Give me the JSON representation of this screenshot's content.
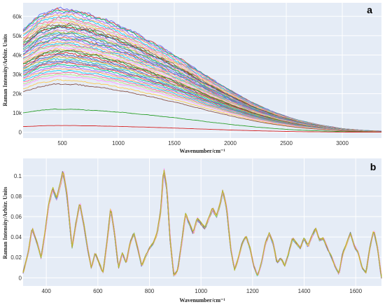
{
  "chart_data": [
    {
      "type": "line",
      "panel_label": "a",
      "title": "",
      "xlabel": "Wavenumber/cm⁻¹",
      "ylabel": "Raman Intensity/Arbitr. Units",
      "xlim": [
        150,
        3350
      ],
      "ylim": [
        -3000,
        67000
      ],
      "xticks": [
        500,
        1000,
        1500,
        2000,
        2500,
        3000
      ],
      "xtick_labels": [
        "500",
        "1000",
        "1500",
        "2000",
        "2500",
        "3000"
      ],
      "yticks": [
        0,
        10000,
        20000,
        30000,
        40000,
        50000,
        60000
      ],
      "ytick_labels": [
        "0",
        "10k",
        "20k",
        "30k",
        "40k",
        "50k",
        "60k"
      ],
      "grid": true,
      "legend": "none",
      "profile": {
        "x": [
          150,
          300,
          450,
          600,
          800,
          1000,
          1200,
          1400,
          1600,
          1800,
          2000,
          2200,
          2400,
          2600,
          2800,
          3000,
          3200,
          3350
        ],
        "relative_y": [
          0.83,
          0.95,
          1.0,
          0.99,
          0.94,
          0.87,
          0.78,
          0.68,
          0.57,
          0.45,
          0.34,
          0.24,
          0.16,
          0.1,
          0.06,
          0.03,
          0.015,
          0.01
        ]
      },
      "series_peak_values": [
        64000,
        63500,
        63000,
        62000,
        61000,
        60000,
        59000,
        58000,
        57500,
        57000,
        56000,
        55000,
        54500,
        54000,
        53000,
        52000,
        51500,
        51000,
        50000,
        49000,
        48500,
        48000,
        47000,
        46000,
        45500,
        45000,
        44000,
        43000,
        42500,
        42000,
        41000,
        40000,
        39500,
        39000,
        38000,
        37000,
        36500,
        36000,
        35000,
        34000,
        33000,
        32000,
        31000,
        30000,
        29000,
        27000,
        25000,
        12000,
        3500
      ],
      "series_colors": [
        "#636efa",
        "#ef553b",
        "#00cc96",
        "#ab63fa",
        "#ffa15a",
        "#19d3f3",
        "#ff6692",
        "#b6e880",
        "#ff97ff",
        "#fecb52",
        "#8c564b",
        "#2ca02c",
        "#d62728",
        "#1f77b4",
        "#e377c2",
        "#bcbd22",
        "#17becf",
        "#7f7f7f"
      ]
    },
    {
      "type": "line",
      "panel_label": "b",
      "title": "",
      "xlabel": "Wavenumber/cm⁻¹",
      "ylabel": "Raman Intensity/Arbitr. Units",
      "xlim": [
        310,
        1700
      ],
      "ylim": [
        -0.008,
        0.117
      ],
      "xticks": [
        400,
        600,
        800,
        1000,
        1200,
        1400,
        1600
      ],
      "xtick_labels": [
        "400",
        "600",
        "800",
        "1000",
        "1200",
        "1400",
        "1600"
      ],
      "yticks": [
        0,
        0.02,
        0.04,
        0.06,
        0.08,
        0.1
      ],
      "ytick_labels": [
        "0",
        "0.02",
        "0.04",
        "0.06",
        "0.08",
        "0.1"
      ],
      "grid": true,
      "legend": "none",
      "mean_spectrum": {
        "x": [
          310,
          330,
          345,
          365,
          380,
          395,
          410,
          425,
          440,
          455,
          465,
          480,
          500,
          515,
          530,
          545,
          560,
          575,
          590,
          605,
          620,
          635,
          650,
          665,
          680,
          695,
          710,
          725,
          740,
          755,
          770,
          785,
          800,
          815,
          830,
          845,
          855,
          868,
          880,
          895,
          910,
          925,
          940,
          955,
          970,
          985,
          1000,
          1015,
          1030,
          1045,
          1060,
          1075,
          1085,
          1100,
          1115,
          1130,
          1145,
          1160,
          1175,
          1190,
          1205,
          1220,
          1235,
          1250,
          1265,
          1280,
          1295,
          1310,
          1325,
          1340,
          1355,
          1370,
          1385,
          1400,
          1415,
          1430,
          1445,
          1460,
          1475,
          1490,
          1505,
          1520,
          1535,
          1550,
          1565,
          1580,
          1595,
          1610,
          1625,
          1640,
          1655,
          1670,
          1685,
          1700
        ],
        "y": [
          0.005,
          0.025,
          0.05,
          0.035,
          0.02,
          0.045,
          0.075,
          0.09,
          0.08,
          0.095,
          0.108,
          0.085,
          0.03,
          0.055,
          0.075,
          0.055,
          0.03,
          0.01,
          0.025,
          0.015,
          0.005,
          0.035,
          0.07,
          0.045,
          0.01,
          0.025,
          0.015,
          0.035,
          0.045,
          0.03,
          0.012,
          0.022,
          0.03,
          0.035,
          0.045,
          0.07,
          0.11,
          0.09,
          0.04,
          0.002,
          0.008,
          0.035,
          0.065,
          0.055,
          0.045,
          0.06,
          0.055,
          0.05,
          0.06,
          0.07,
          0.062,
          0.075,
          0.088,
          0.07,
          0.03,
          0.008,
          0.02,
          0.035,
          0.042,
          0.03,
          0.012,
          0.002,
          0.015,
          0.035,
          0.045,
          0.035,
          0.015,
          0.02,
          0.012,
          0.025,
          0.04,
          0.035,
          0.03,
          0.04,
          0.032,
          0.042,
          0.05,
          0.038,
          0.04,
          0.03,
          0.022,
          0.012,
          0.004,
          0.025,
          0.035,
          0.045,
          0.032,
          0.025,
          0.01,
          0.005,
          0.03,
          0.048,
          0.03,
          0.0
        ]
      },
      "series_colors": [
        "#636efa",
        "#ef553b",
        "#00cc96",
        "#ab63fa",
        "#ffa15a",
        "#19d3f3",
        "#ff6692",
        "#b6e880",
        "#ff97ff",
        "#fecb52",
        "#7f7f7f",
        "#bcbd22"
      ]
    }
  ]
}
